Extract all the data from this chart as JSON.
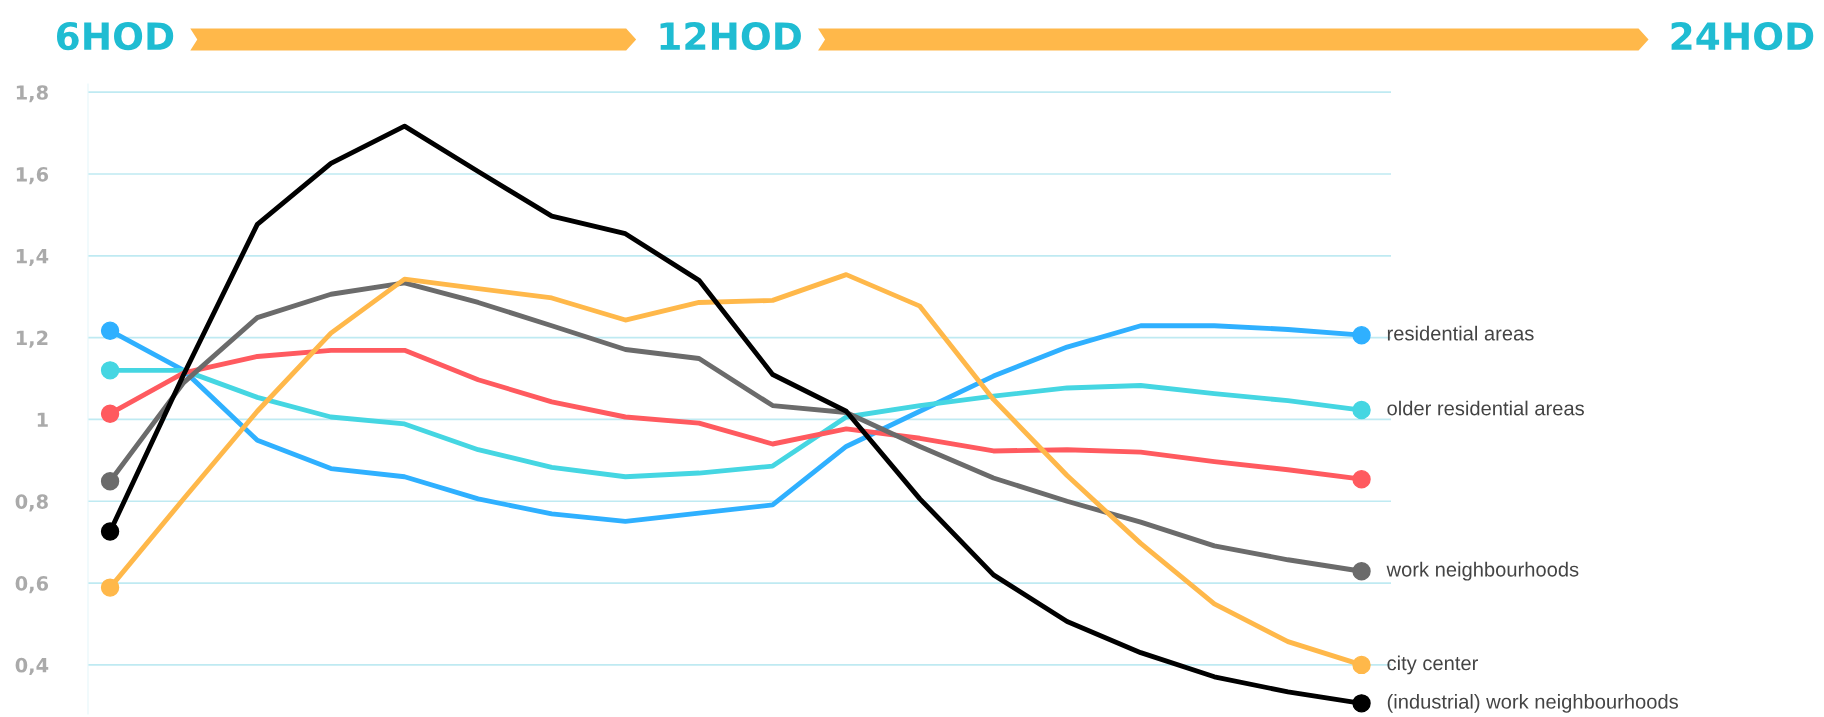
{
  "chart_data": {
    "type": "line",
    "categories": [
      null,
      null,
      null,
      null,
      null,
      null,
      null,
      null,
      null,
      null,
      null,
      null,
      null,
      null,
      null,
      null,
      null,
      null
    ],
    "annotations": [
      "6HOD",
      "12HOD",
      "24HOD"
    ],
    "ylim": [
      0.28,
      1.82
    ],
    "yticks": [
      {
        "value": 0.4,
        "label": "0,4"
      },
      {
        "value": 0.6,
        "label": "0,6"
      },
      {
        "value": 0.8,
        "label": "0,8"
      },
      {
        "value": 1,
        "label": "1"
      },
      {
        "value": 1.2,
        "label": "1,2"
      },
      {
        "value": 1.4,
        "label": "1,4"
      },
      {
        "value": 1.6,
        "label": "1,6"
      },
      {
        "value": 1.8,
        "label": "1,8"
      }
    ],
    "grid": "y",
    "legend": false,
    "line_style": "solid",
    "series": [
      {
        "name": "residential areas",
        "color": "#2fb0ff",
        "values": [
          1.217,
          1.12,
          0.949,
          0.88,
          0.86,
          0.806,
          0.769,
          0.751,
          0.771,
          0.791,
          0.934,
          1.02,
          1.106,
          1.177,
          1.229,
          1.229,
          1.22,
          1.206
        ]
      },
      {
        "name": "older residential areas",
        "color": "#45d6e2",
        "values": [
          1.12,
          1.12,
          1.054,
          1.006,
          0.989,
          0.926,
          0.883,
          0.86,
          0.869,
          0.886,
          1.006,
          1.034,
          1.057,
          1.077,
          1.083,
          1.063,
          1.046,
          1.023
        ]
      },
      {
        "color": "#ff5a5f",
        "values": [
          1.014,
          1.114,
          1.154,
          1.169,
          1.169,
          1.097,
          1.043,
          1.006,
          0.991,
          0.94,
          0.977,
          0.954,
          0.923,
          0.926,
          0.92,
          0.897,
          0.877,
          0.854
        ]
      },
      {
        "name": "work neighbourhoods",
        "color": "#6b6b6b",
        "values": [
          0.849,
          1.09,
          1.249,
          1.306,
          1.334,
          1.286,
          1.229,
          1.171,
          1.149,
          1.034,
          1.017,
          0.934,
          0.857,
          0.8,
          0.749,
          0.691,
          0.657,
          0.629
        ]
      },
      {
        "name": "city center",
        "color": "#ffb84a",
        "values": [
          0.589,
          0.806,
          1.02,
          1.211,
          1.343,
          1.32,
          1.297,
          1.243,
          1.286,
          1.291,
          1.354,
          1.277,
          1.049,
          0.863,
          0.697,
          0.549,
          0.457,
          0.4
        ]
      },
      {
        "name": "(industrial) work neighbourhoods",
        "color": "#000000",
        "values": [
          0.726,
          1.11,
          1.477,
          1.626,
          1.717,
          1.606,
          1.497,
          1.454,
          1.34,
          1.11,
          1.02,
          0.806,
          0.62,
          0.506,
          0.43,
          0.371,
          0.334,
          0.306
        ]
      }
    ]
  }
}
